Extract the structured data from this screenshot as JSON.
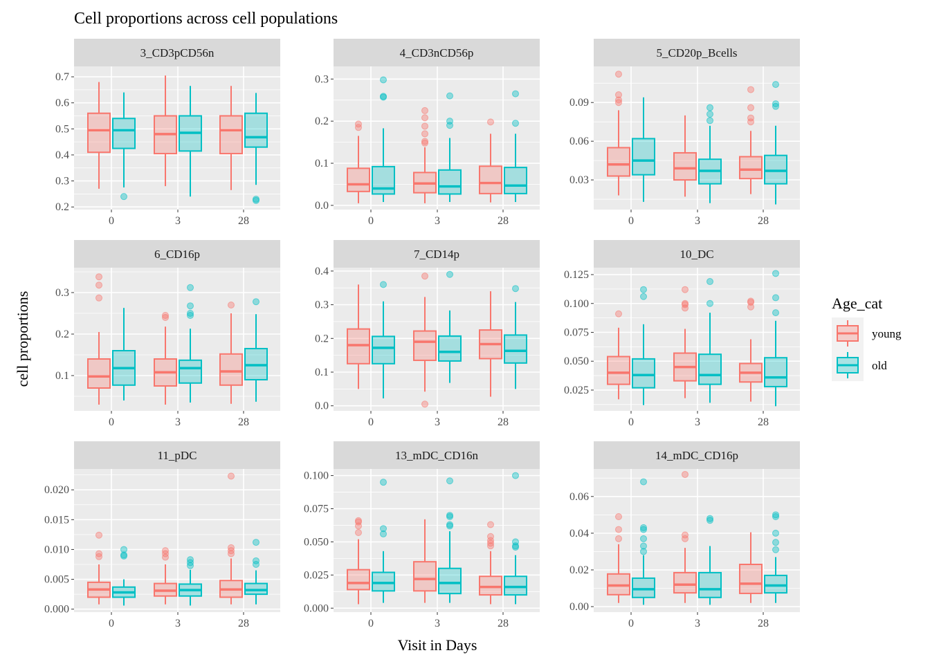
{
  "chart_data": {
    "type": "boxplot",
    "title": "Cell proportions across cell populations",
    "xlabel": "Visit in Days",
    "ylabel": "cell proportions",
    "legend": {
      "title": "Age_cat",
      "position": "right",
      "entries": [
        "young",
        "old"
      ]
    },
    "colors": {
      "young": "#F8766D",
      "old": "#00BFC4",
      "panel_bg": "#EBEBEB",
      "strip_bg": "#D9D9D9",
      "grid": "#FFFFFF"
    },
    "categories": [
      "0",
      "3",
      "28"
    ],
    "groups": [
      "young",
      "old"
    ],
    "panels": [
      {
        "name": "3_CD3pCD56n",
        "ylim": [
          0.19,
          0.74
        ],
        "yticks": [
          0.2,
          0.3,
          0.4,
          0.5,
          0.6,
          0.7
        ],
        "ytick_labels": [
          "0.2",
          "0.3",
          "0.4",
          "0.5",
          "0.6",
          "0.7"
        ],
        "boxes": [
          {
            "visit": "0",
            "group": "young",
            "min": 0.27,
            "q1": 0.41,
            "median": 0.495,
            "q3": 0.56,
            "max": 0.68,
            "outliers": []
          },
          {
            "visit": "0",
            "group": "old",
            "min": 0.275,
            "q1": 0.425,
            "median": 0.495,
            "q3": 0.54,
            "max": 0.64,
            "outliers": [
              0.24
            ]
          },
          {
            "visit": "3",
            "group": "young",
            "min": 0.28,
            "q1": 0.405,
            "median": 0.48,
            "q3": 0.55,
            "max": 0.705,
            "outliers": []
          },
          {
            "visit": "3",
            "group": "old",
            "min": 0.24,
            "q1": 0.415,
            "median": 0.485,
            "q3": 0.55,
            "max": 0.665,
            "outliers": []
          },
          {
            "visit": "28",
            "group": "young",
            "min": 0.265,
            "q1": 0.405,
            "median": 0.495,
            "q3": 0.55,
            "max": 0.665,
            "outliers": []
          },
          {
            "visit": "28",
            "group": "old",
            "min": 0.285,
            "q1": 0.43,
            "median": 0.468,
            "q3": 0.56,
            "max": 0.638,
            "outliers": [
              0.225,
              0.23
            ]
          }
        ]
      },
      {
        "name": "4_CD3nCD56p",
        "ylim": [
          -0.01,
          0.33
        ],
        "yticks": [
          0.0,
          0.1,
          0.2,
          0.3
        ],
        "ytick_labels": [
          "0.0",
          "0.1",
          "0.2",
          "0.3"
        ],
        "boxes": [
          {
            "visit": "0",
            "group": "young",
            "min": 0.005,
            "q1": 0.033,
            "median": 0.05,
            "q3": 0.088,
            "max": 0.165,
            "outliers": [
              0.185,
              0.193
            ]
          },
          {
            "visit": "0",
            "group": "old",
            "min": 0.008,
            "q1": 0.027,
            "median": 0.04,
            "q3": 0.092,
            "max": 0.183,
            "outliers": [
              0.257,
              0.259,
              0.298
            ]
          },
          {
            "visit": "3",
            "group": "young",
            "min": 0.005,
            "q1": 0.03,
            "median": 0.052,
            "q3": 0.078,
            "max": 0.138,
            "outliers": [
              0.148,
              0.152,
              0.17,
              0.188,
              0.208,
              0.225
            ]
          },
          {
            "visit": "3",
            "group": "old",
            "min": 0.008,
            "q1": 0.027,
            "median": 0.045,
            "q3": 0.084,
            "max": 0.16,
            "outliers": [
              0.19,
              0.2,
              0.26
            ]
          },
          {
            "visit": "28",
            "group": "young",
            "min": 0.007,
            "q1": 0.028,
            "median": 0.053,
            "q3": 0.093,
            "max": 0.17,
            "outliers": [
              0.198
            ]
          },
          {
            "visit": "28",
            "group": "old",
            "min": 0.008,
            "q1": 0.028,
            "median": 0.047,
            "q3": 0.09,
            "max": 0.17,
            "outliers": [
              0.195,
              0.265
            ]
          }
        ]
      },
      {
        "name": "5_CD20p_Bcells",
        "ylim": [
          0.007,
          0.118
        ],
        "yticks": [
          0.03,
          0.06,
          0.09
        ],
        "ytick_labels": [
          "0.03",
          "0.06",
          "0.09"
        ],
        "boxes": [
          {
            "visit": "0",
            "group": "young",
            "min": 0.018,
            "q1": 0.033,
            "median": 0.042,
            "q3": 0.055,
            "max": 0.084,
            "outliers": [
              0.09,
              0.092,
              0.096,
              0.112
            ]
          },
          {
            "visit": "0",
            "group": "old",
            "min": 0.013,
            "q1": 0.034,
            "median": 0.045,
            "q3": 0.062,
            "max": 0.094,
            "outliers": []
          },
          {
            "visit": "3",
            "group": "young",
            "min": 0.017,
            "q1": 0.03,
            "median": 0.039,
            "q3": 0.051,
            "max": 0.08,
            "outliers": []
          },
          {
            "visit": "3",
            "group": "old",
            "min": 0.012,
            "q1": 0.027,
            "median": 0.037,
            "q3": 0.046,
            "max": 0.072,
            "outliers": [
              0.076,
              0.081,
              0.086
            ]
          },
          {
            "visit": "28",
            "group": "young",
            "min": 0.019,
            "q1": 0.031,
            "median": 0.038,
            "q3": 0.048,
            "max": 0.068,
            "outliers": [
              0.075,
              0.078,
              0.086,
              0.1
            ]
          },
          {
            "visit": "28",
            "group": "old",
            "min": 0.011,
            "q1": 0.027,
            "median": 0.037,
            "q3": 0.049,
            "max": 0.072,
            "outliers": [
              0.087,
              0.089,
              0.104
            ]
          }
        ]
      },
      {
        "name": "6_CD16p",
        "ylim": [
          0.015,
          0.36
        ],
        "yticks": [
          0.1,
          0.2,
          0.3
        ],
        "ytick_labels": [
          "0.1",
          "0.2",
          "0.3"
        ],
        "boxes": [
          {
            "visit": "0",
            "group": "young",
            "min": 0.03,
            "q1": 0.07,
            "median": 0.098,
            "q3": 0.14,
            "max": 0.205,
            "outliers": [
              0.287,
              0.318,
              0.338
            ]
          },
          {
            "visit": "0",
            "group": "old",
            "min": 0.04,
            "q1": 0.077,
            "median": 0.118,
            "q3": 0.16,
            "max": 0.263,
            "outliers": []
          },
          {
            "visit": "3",
            "group": "young",
            "min": 0.03,
            "q1": 0.075,
            "median": 0.108,
            "q3": 0.14,
            "max": 0.218,
            "outliers": [
              0.24,
              0.245
            ]
          },
          {
            "visit": "3",
            "group": "old",
            "min": 0.035,
            "q1": 0.082,
            "median": 0.118,
            "q3": 0.137,
            "max": 0.213,
            "outliers": [
              0.245,
              0.25,
              0.268,
              0.312
            ]
          },
          {
            "visit": "28",
            "group": "young",
            "min": 0.032,
            "q1": 0.077,
            "median": 0.11,
            "q3": 0.152,
            "max": 0.25,
            "outliers": [
              0.27
            ]
          },
          {
            "visit": "28",
            "group": "old",
            "min": 0.037,
            "q1": 0.09,
            "median": 0.125,
            "q3": 0.165,
            "max": 0.248,
            "outliers": [
              0.278
            ]
          }
        ]
      },
      {
        "name": "7_CD14p",
        "ylim": [
          -0.015,
          0.41
        ],
        "yticks": [
          0.0,
          0.1,
          0.2,
          0.3,
          0.4
        ],
        "ytick_labels": [
          "0.0",
          "0.1",
          "0.2",
          "0.3",
          "0.4"
        ],
        "boxes": [
          {
            "visit": "0",
            "group": "young",
            "min": 0.05,
            "q1": 0.125,
            "median": 0.18,
            "q3": 0.228,
            "max": 0.36,
            "outliers": []
          },
          {
            "visit": "0",
            "group": "old",
            "min": 0.022,
            "q1": 0.125,
            "median": 0.172,
            "q3": 0.206,
            "max": 0.31,
            "outliers": [
              0.36
            ]
          },
          {
            "visit": "3",
            "group": "young",
            "min": 0.042,
            "q1": 0.135,
            "median": 0.19,
            "q3": 0.222,
            "max": 0.323,
            "outliers": [
              0.005,
              0.385
            ]
          },
          {
            "visit": "3",
            "group": "old",
            "min": 0.068,
            "q1": 0.133,
            "median": 0.16,
            "q3": 0.207,
            "max": 0.283,
            "outliers": [
              0.39
            ]
          },
          {
            "visit": "28",
            "group": "young",
            "min": 0.027,
            "q1": 0.14,
            "median": 0.183,
            "q3": 0.225,
            "max": 0.34,
            "outliers": []
          },
          {
            "visit": "28",
            "group": "old",
            "min": 0.05,
            "q1": 0.127,
            "median": 0.163,
            "q3": 0.21,
            "max": 0.308,
            "outliers": [
              0.348
            ]
          }
        ]
      },
      {
        "name": "10_DC",
        "ylim": [
          0.007,
          0.131
        ],
        "yticks": [
          0.025,
          0.05,
          0.075,
          0.1,
          0.125
        ],
        "ytick_labels": [
          "0.025",
          "0.050",
          "0.075",
          "0.100",
          "0.125"
        ],
        "boxes": [
          {
            "visit": "0",
            "group": "young",
            "min": 0.017,
            "q1": 0.03,
            "median": 0.04,
            "q3": 0.054,
            "max": 0.079,
            "outliers": [
              0.091
            ]
          },
          {
            "visit": "0",
            "group": "old",
            "min": 0.012,
            "q1": 0.027,
            "median": 0.038,
            "q3": 0.052,
            "max": 0.082,
            "outliers": [
              0.106,
              0.112
            ]
          },
          {
            "visit": "3",
            "group": "young",
            "min": 0.018,
            "q1": 0.033,
            "median": 0.045,
            "q3": 0.057,
            "max": 0.078,
            "outliers": [
              0.096,
              0.099,
              0.1,
              0.112
            ]
          },
          {
            "visit": "3",
            "group": "old",
            "min": 0.014,
            "q1": 0.03,
            "median": 0.038,
            "q3": 0.056,
            "max": 0.092,
            "outliers": [
              0.1,
              0.119
            ]
          },
          {
            "visit": "28",
            "group": "young",
            "min": 0.015,
            "q1": 0.032,
            "median": 0.04,
            "q3": 0.048,
            "max": 0.069,
            "outliers": [
              0.097,
              0.101,
              0.102
            ]
          },
          {
            "visit": "28",
            "group": "old",
            "min": 0.011,
            "q1": 0.028,
            "median": 0.036,
            "q3": 0.053,
            "max": 0.085,
            "outliers": [
              0.092,
              0.105,
              0.126
            ]
          }
        ]
      },
      {
        "name": "11_pDC",
        "ylim": [
          -0.0005,
          0.0235
        ],
        "yticks": [
          0.0,
          0.005,
          0.01,
          0.015,
          0.02
        ],
        "ytick_labels": [
          "0.000",
          "0.005",
          "0.010",
          "0.015",
          "0.020"
        ],
        "boxes": [
          {
            "visit": "0",
            "group": "young",
            "min": 0.0008,
            "q1": 0.002,
            "median": 0.0033,
            "q3": 0.0045,
            "max": 0.0075,
            "outliers": [
              0.0088,
              0.0093,
              0.0124
            ]
          },
          {
            "visit": "0",
            "group": "old",
            "min": 0.0006,
            "q1": 0.002,
            "median": 0.0028,
            "q3": 0.0037,
            "max": 0.005,
            "outliers": [
              0.0089,
              0.0091,
              0.01
            ]
          },
          {
            "visit": "3",
            "group": "young",
            "min": 0.0008,
            "q1": 0.0022,
            "median": 0.0031,
            "q3": 0.0043,
            "max": 0.0075,
            "outliers": [
              0.0087,
              0.0093,
              0.0098
            ]
          },
          {
            "visit": "3",
            "group": "old",
            "min": 0.0006,
            "q1": 0.0022,
            "median": 0.0032,
            "q3": 0.0042,
            "max": 0.0066,
            "outliers": [
              0.0073,
              0.0078,
              0.0083
            ]
          },
          {
            "visit": "28",
            "group": "young",
            "min": 0.0008,
            "q1": 0.002,
            "median": 0.0033,
            "q3": 0.0048,
            "max": 0.0085,
            "outliers": [
              0.0093,
              0.0098,
              0.0103,
              0.0223
            ]
          },
          {
            "visit": "28",
            "group": "old",
            "min": 0.0008,
            "q1": 0.0025,
            "median": 0.0032,
            "q3": 0.0043,
            "max": 0.0065,
            "outliers": [
              0.0075,
              0.0081,
              0.0112
            ]
          }
        ]
      },
      {
        "name": "13_mDC_CD16n",
        "ylim": [
          -0.003,
          0.105
        ],
        "yticks": [
          0.0,
          0.025,
          0.05,
          0.075,
          0.1
        ],
        "ytick_labels": [
          "0.000",
          "0.025",
          "0.050",
          "0.075",
          "0.100"
        ],
        "boxes": [
          {
            "visit": "0",
            "group": "young",
            "min": 0.003,
            "q1": 0.014,
            "median": 0.019,
            "q3": 0.029,
            "max": 0.052,
            "outliers": [
              0.057,
              0.062,
              0.065,
              0.066
            ]
          },
          {
            "visit": "0",
            "group": "old",
            "min": 0.004,
            "q1": 0.013,
            "median": 0.019,
            "q3": 0.027,
            "max": 0.043,
            "outliers": [
              0.056,
              0.06,
              0.095
            ]
          },
          {
            "visit": "3",
            "group": "young",
            "min": 0.004,
            "q1": 0.013,
            "median": 0.022,
            "q3": 0.035,
            "max": 0.067,
            "outliers": []
          },
          {
            "visit": "3",
            "group": "old",
            "min": 0.004,
            "q1": 0.011,
            "median": 0.019,
            "q3": 0.03,
            "max": 0.058,
            "outliers": [
              0.062,
              0.063,
              0.069,
              0.07,
              0.096
            ]
          },
          {
            "visit": "28",
            "group": "young",
            "min": 0.003,
            "q1": 0.01,
            "median": 0.016,
            "q3": 0.024,
            "max": 0.043,
            "outliers": [
              0.047,
              0.049,
              0.051,
              0.054,
              0.063
            ]
          },
          {
            "visit": "28",
            "group": "old",
            "min": 0.003,
            "q1": 0.01,
            "median": 0.016,
            "q3": 0.024,
            "max": 0.04,
            "outliers": [
              0.046,
              0.047,
              0.05,
              0.1
            ]
          }
        ]
      },
      {
        "name": "14_mDC_CD16p",
        "ylim": [
          -0.003,
          0.075
        ],
        "yticks": [
          0.0,
          0.02,
          0.04,
          0.06
        ],
        "ytick_labels": [
          "0.00",
          "0.02",
          "0.04",
          "0.06"
        ],
        "boxes": [
          {
            "visit": "0",
            "group": "young",
            "min": 0.002,
            "q1": 0.0065,
            "median": 0.0115,
            "q3": 0.0178,
            "max": 0.034,
            "outliers": [
              0.037,
              0.042,
              0.049
            ]
          },
          {
            "visit": "0",
            "group": "old",
            "min": 0.001,
            "q1": 0.005,
            "median": 0.0095,
            "q3": 0.0155,
            "max": 0.028,
            "outliers": [
              0.03,
              0.033,
              0.037,
              0.042,
              0.043,
              0.068
            ]
          },
          {
            "visit": "3",
            "group": "young",
            "min": 0.002,
            "q1": 0.0075,
            "median": 0.012,
            "q3": 0.0185,
            "max": 0.032,
            "outliers": [
              0.037,
              0.039,
              0.072
            ]
          },
          {
            "visit": "3",
            "group": "old",
            "min": 0.001,
            "q1": 0.005,
            "median": 0.0095,
            "q3": 0.0185,
            "max": 0.033,
            "outliers": [
              0.047,
              0.048
            ]
          },
          {
            "visit": "28",
            "group": "young",
            "min": 0.002,
            "q1": 0.0072,
            "median": 0.0125,
            "q3": 0.023,
            "max": 0.0405,
            "outliers": []
          },
          {
            "visit": "28",
            "group": "old",
            "min": 0.002,
            "q1": 0.0075,
            "median": 0.0115,
            "q3": 0.017,
            "max": 0.027,
            "outliers": [
              0.031,
              0.035,
              0.04,
              0.049,
              0.05
            ]
          }
        ]
      }
    ]
  }
}
